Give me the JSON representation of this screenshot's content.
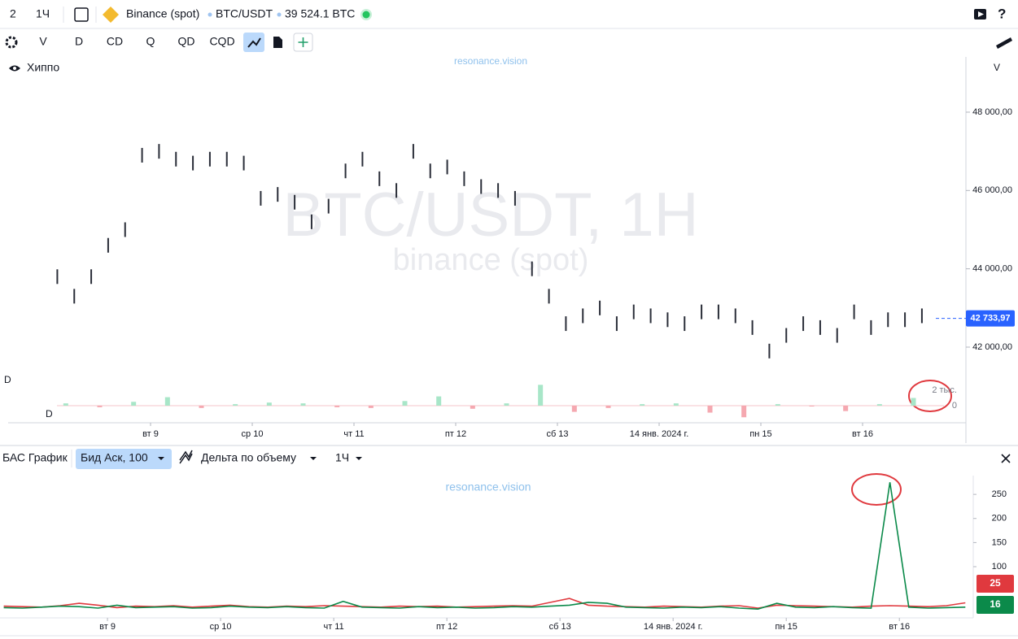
{
  "toolbar": {
    "interval_count": "2",
    "timeframe": "1Ч",
    "exchange": "Binance (spot)",
    "pair": "BTC/USDT",
    "volume": "39 524.1 BTC"
  },
  "toolbar2": {
    "items": [
      "V",
      "D",
      "CD",
      "Q",
      "QD",
      "CQD"
    ]
  },
  "chart_data": [
    {
      "type": "ohlc",
      "title": "BTC/USDT, 1H",
      "subtitle": "binance (spot)",
      "watermark": "resonance.vision",
      "indicator": "Хиппо",
      "axis_label": "V",
      "color": "#2a2e39",
      "x": [
        2,
        6,
        10,
        14,
        18,
        22,
        26,
        30,
        34,
        38,
        42,
        46,
        50,
        54,
        58,
        62,
        66,
        70,
        74,
        78,
        82,
        86,
        90,
        94,
        98,
        102,
        106,
        110,
        114,
        118,
        122,
        126,
        130,
        134,
        138,
        142,
        146,
        150,
        154,
        158,
        162,
        166,
        170,
        174,
        178,
        182,
        186,
        190,
        194,
        198,
        202,
        206
      ],
      "values": [
        43800,
        43300,
        43800,
        44600,
        45000,
        46900,
        47000,
        46800,
        46700,
        46800,
        46800,
        46700,
        45800,
        45900,
        45700,
        45200,
        45600,
        46500,
        46800,
        46300,
        46000,
        47000,
        46500,
        46600,
        46300,
        46100,
        46000,
        45800,
        44000,
        43300,
        42600,
        42800,
        43000,
        42600,
        42900,
        42800,
        42700,
        42600,
        42900,
        42900,
        42800,
        42500,
        41900,
        42300,
        42600,
        42500,
        42300,
        42900,
        42500,
        42700,
        42700,
        42800
      ],
      "xlim": [
        -9.6,
        216
      ],
      "xticks": [
        {
          "value": 24,
          "label": "вт 9"
        },
        {
          "value": 48,
          "label": "ср 10"
        },
        {
          "value": 72,
          "label": "чт 11"
        },
        {
          "value": 96,
          "label": "пт 12"
        },
        {
          "value": 120,
          "label": "сб 13"
        },
        {
          "value": 144,
          "label": "14 янв. 2024 г."
        },
        {
          "value": 168,
          "label": "пн 15"
        },
        {
          "value": 192,
          "label": "вт 16"
        }
      ],
      "ylim": [
        40069,
        49411
      ],
      "yticks": [
        {
          "value": 42000,
          "label": "42 000,00"
        },
        {
          "value": 44000,
          "label": "44 000,00"
        },
        {
          "value": 46000,
          "label": "46 000,00"
        },
        {
          "value": 48000,
          "label": "48 000,00"
        }
      ],
      "last_price": {
        "value": 42733.97,
        "label": "42 733,97"
      },
      "last_price_color": "#2962ff"
    },
    {
      "type": "bar",
      "label": "D",
      "up_color": "#a8e6c8",
      "down_color": "#f5a8b0",
      "x": [
        4,
        12,
        20,
        28,
        36,
        44,
        52,
        60,
        68,
        76,
        84,
        92,
        100,
        108,
        116,
        124,
        132,
        140,
        148,
        156,
        164,
        172,
        180,
        188,
        196,
        204
      ],
      "values": [
        300,
        -200,
        500,
        1100,
        -300,
        200,
        400,
        300,
        -200,
        -300,
        600,
        1200,
        -400,
        300,
        2700,
        -800,
        -300,
        200,
        300,
        -900,
        -1500,
        200,
        -100,
        -700,
        200,
        1000
      ],
      "ylim": [
        -2210,
        3053
      ],
      "yticks": [
        0,
        {
          "value": 2000,
          "label": "2 тыс."
        }
      ]
    },
    {
      "type": "line",
      "panel_title": "БАС График",
      "mode": "Бид Аск, 100",
      "indicator": "Дельта по объему",
      "timeframe": "1Ч",
      "watermark": "resonance.vision",
      "x": [
        2,
        6,
        10,
        14,
        18,
        22,
        26,
        30,
        34,
        38,
        42,
        46,
        50,
        54,
        58,
        62,
        66,
        70,
        74,
        78,
        82,
        86,
        90,
        94,
        98,
        102,
        106,
        110,
        114,
        118,
        122,
        126,
        130,
        134,
        138,
        142,
        146,
        150,
        154,
        158,
        162,
        166,
        170,
        174,
        178,
        182,
        186,
        190,
        194,
        198,
        202,
        206
      ],
      "series": [
        {
          "color": "#0b8a4a",
          "values": [
            15,
            14,
            16,
            18,
            17,
            14,
            20,
            15,
            16,
            17,
            14,
            15,
            18,
            16,
            15,
            17,
            15,
            14,
            28,
            16,
            15,
            14,
            17,
            15,
            16,
            14,
            15,
            17,
            16,
            18,
            20,
            26,
            24,
            16,
            15,
            14,
            16,
            15,
            17,
            14,
            12,
            24,
            16,
            15,
            17,
            15,
            14,
            275,
            16,
            14,
            15,
            16
          ]
        },
        {
          "color": "#e0393e",
          "values": [
            18,
            17,
            16,
            19,
            24,
            20,
            15,
            18,
            17,
            19,
            16,
            18,
            20,
            17,
            16,
            18,
            17,
            19,
            18,
            17,
            16,
            18,
            17,
            18,
            16,
            17,
            18,
            19,
            18,
            26,
            34,
            20,
            18,
            17,
            16,
            18,
            17,
            16,
            18,
            19,
            14,
            20,
            19,
            18,
            17,
            16,
            18,
            19,
            18,
            17,
            19,
            25
          ]
        }
      ],
      "xlim": [
        1.2,
        207.5
      ],
      "xticks": [
        {
          "value": 24,
          "label": "вт 9"
        },
        {
          "value": 48,
          "label": "ср 10"
        },
        {
          "value": 72,
          "label": "чт 11"
        },
        {
          "value": 96,
          "label": "пт 12"
        },
        {
          "value": 120,
          "label": "сб 13"
        },
        {
          "value": 144,
          "label": "14 янв. 2024 г."
        },
        {
          "value": 168,
          "label": "пн 15"
        },
        {
          "value": 192,
          "label": "вт 16"
        }
      ],
      "ylim": [
        0,
        289
      ],
      "yticks": [
        100,
        150,
        200,
        250
      ]
    }
  ]
}
